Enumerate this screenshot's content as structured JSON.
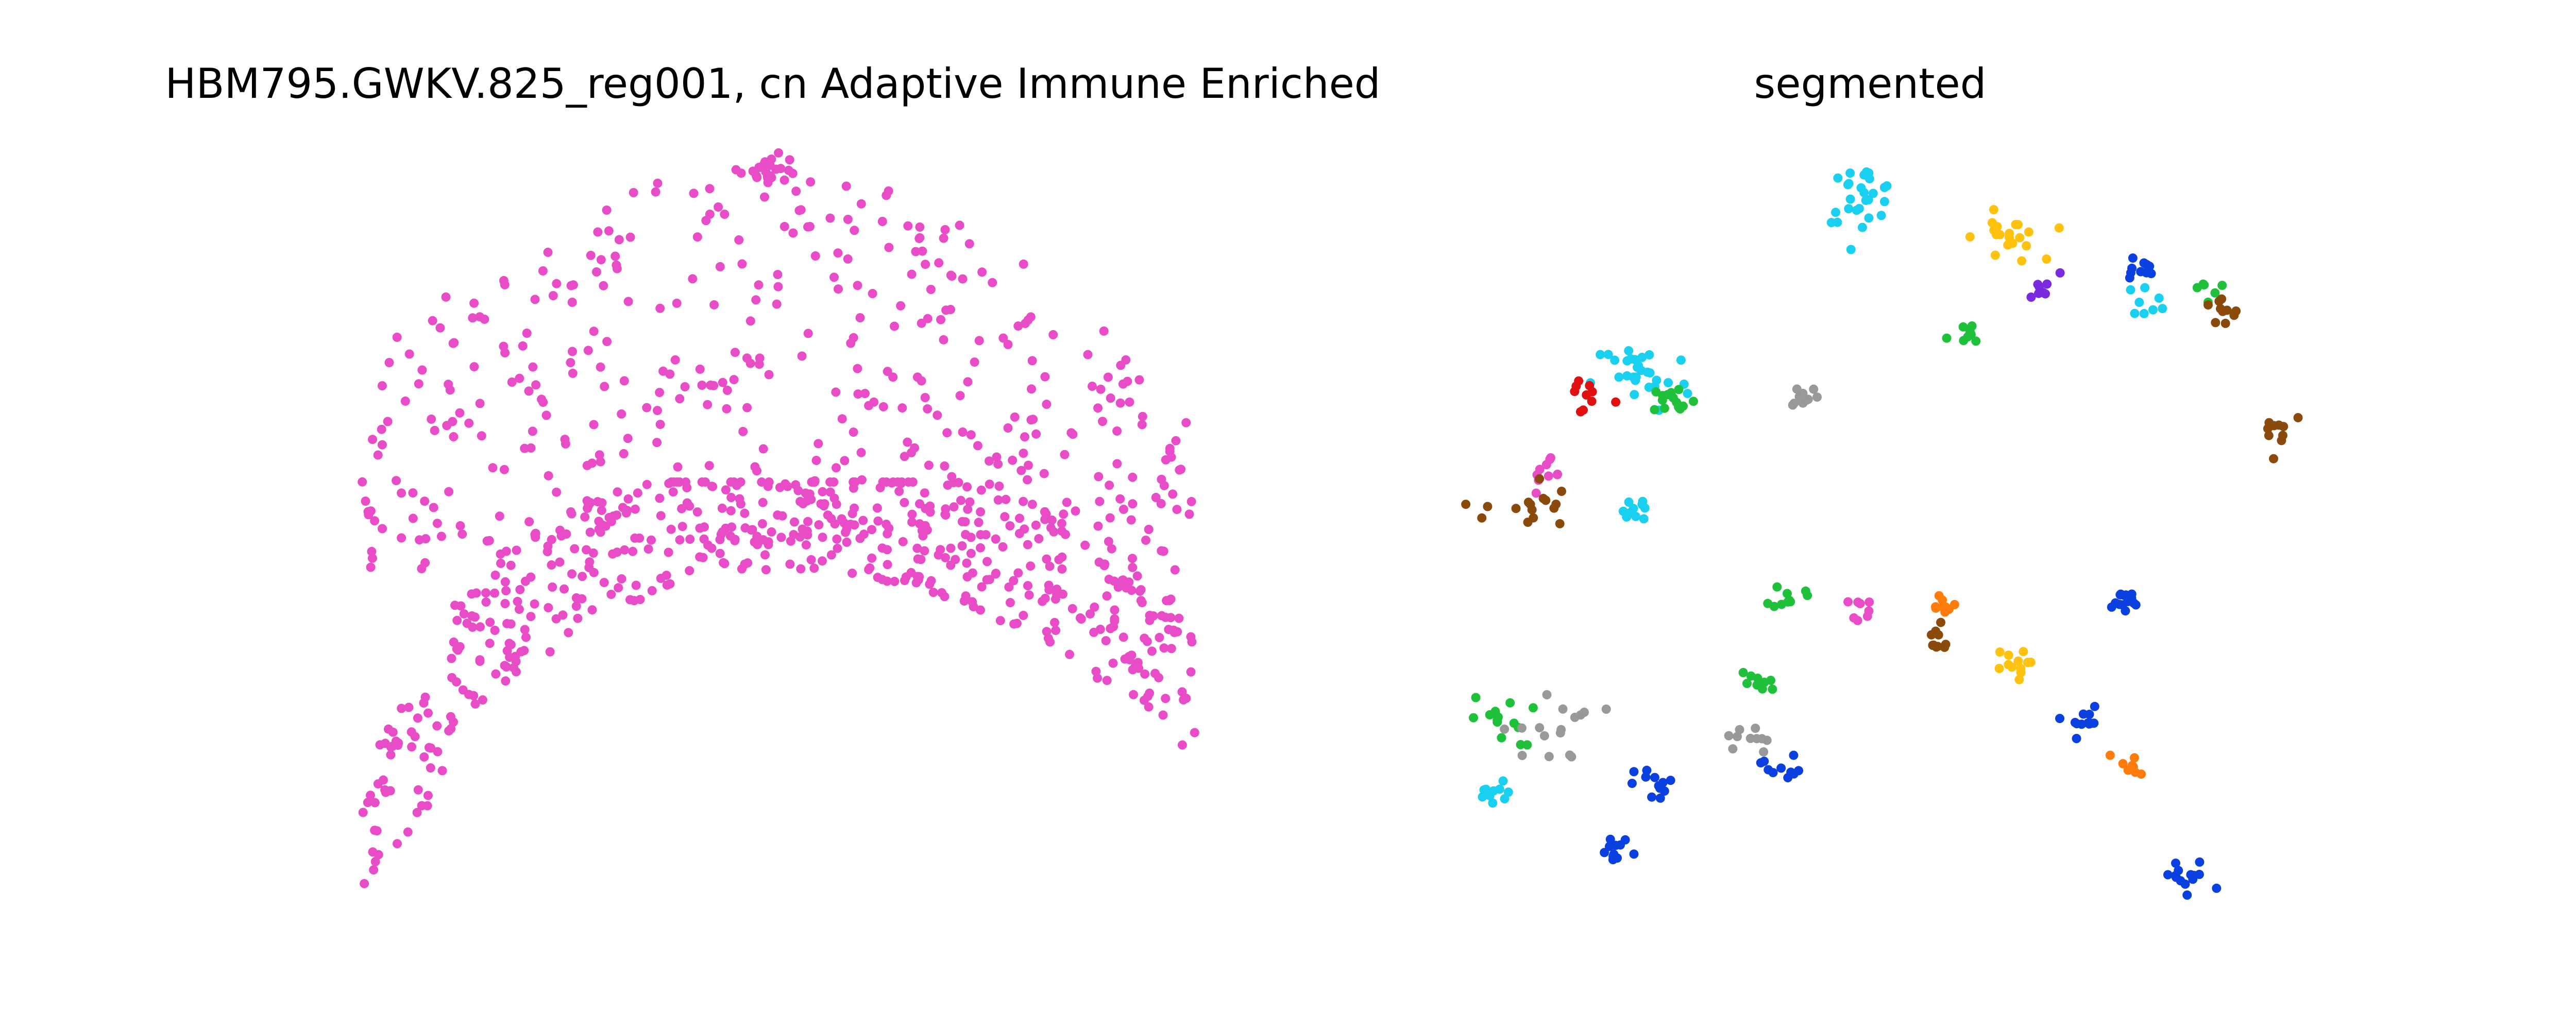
{
  "figure": {
    "left_title": "HBM795.GWKV.825_reg001, cn Adaptive Immune Enriched",
    "right_title": "segmented"
  },
  "chart_data": [
    {
      "type": "scatter",
      "title": "HBM795.GWKV.825_reg001, cn Adaptive Immune Enriched",
      "axes_visible": false,
      "grid": false,
      "xlim": [
        0,
        1
      ],
      "ylim": [
        0,
        1
      ],
      "series": [
        {
          "color": "#e84dc7",
          "regions": [
            {
              "kind": "arch-top",
              "x": [
                0.0,
                1.0
              ],
              "y": [
                0.42,
                1.0
              ],
              "count": 420
            },
            {
              "kind": "arch-band",
              "x": [
                0.0,
                1.0
              ],
              "y": [
                0.0,
                0.55
              ],
              "count": 520
            },
            {
              "kind": "cluster",
              "cx": 0.49,
              "cy": 0.995,
              "n": 25,
              "r": 0.018
            }
          ]
        }
      ]
    },
    {
      "type": "scatter",
      "title": "segmented",
      "axes_visible": false,
      "grid": false,
      "xlim": [
        0,
        1
      ],
      "ylim": [
        0,
        1
      ],
      "clusters": [
        {
          "color": "#1ad0f0",
          "cx": 0.47,
          "cy": 0.97,
          "n": 28,
          "r": 0.022
        },
        {
          "color": "#ffc20e",
          "cx": 0.65,
          "cy": 0.9,
          "n": 20,
          "r": 0.02
        },
        {
          "color": "#0a3fe0",
          "cx": 0.81,
          "cy": 0.85,
          "n": 10,
          "r": 0.012
        },
        {
          "color": "#1ad0f0",
          "cx": 0.82,
          "cy": 0.8,
          "n": 8,
          "r": 0.012
        },
        {
          "color": "#1fc03a",
          "cx": 0.89,
          "cy": 0.82,
          "n": 6,
          "r": 0.01
        },
        {
          "color": "#7a2be0",
          "cx": 0.69,
          "cy": 0.82,
          "n": 8,
          "r": 0.012
        },
        {
          "color": "#8a4a0c",
          "cx": 0.91,
          "cy": 0.78,
          "n": 10,
          "r": 0.014
        },
        {
          "color": "#1fc03a",
          "cx": 0.6,
          "cy": 0.74,
          "n": 8,
          "r": 0.012
        },
        {
          "color": "#1ad0f0",
          "cx": 0.2,
          "cy": 0.68,
          "n": 30,
          "r": 0.03
        },
        {
          "color": "#1fc03a",
          "cx": 0.24,
          "cy": 0.64,
          "n": 14,
          "r": 0.014
        },
        {
          "color": "#e01010",
          "cx": 0.13,
          "cy": 0.65,
          "n": 10,
          "r": 0.018
        },
        {
          "color": "#999999",
          "cx": 0.4,
          "cy": 0.65,
          "n": 10,
          "r": 0.01
        },
        {
          "color": "#8a4a0c",
          "cx": 0.98,
          "cy": 0.6,
          "n": 10,
          "r": 0.018
        },
        {
          "color": "#e84dc7",
          "cx": 0.09,
          "cy": 0.52,
          "n": 10,
          "r": 0.016
        },
        {
          "color": "#8a4a0c",
          "cx": 0.06,
          "cy": 0.47,
          "n": 16,
          "r": 0.026
        },
        {
          "color": "#1ad0f0",
          "cx": 0.19,
          "cy": 0.47,
          "n": 10,
          "r": 0.012
        },
        {
          "color": "#1fc03a",
          "cx": 0.38,
          "cy": 0.33,
          "n": 10,
          "r": 0.01
        },
        {
          "color": "#e84dc7",
          "cx": 0.48,
          "cy": 0.31,
          "n": 8,
          "r": 0.01
        },
        {
          "color": "#ff7c0a",
          "cx": 0.57,
          "cy": 0.32,
          "n": 10,
          "r": 0.008
        },
        {
          "color": "#0a3fe0",
          "cx": 0.79,
          "cy": 0.32,
          "n": 16,
          "r": 0.012
        },
        {
          "color": "#8a4a0c",
          "cx": 0.56,
          "cy": 0.26,
          "n": 10,
          "r": 0.012
        },
        {
          "color": "#ffc20e",
          "cx": 0.65,
          "cy": 0.22,
          "n": 12,
          "r": 0.012
        },
        {
          "color": "#1fc03a",
          "cx": 0.34,
          "cy": 0.19,
          "n": 10,
          "r": 0.012
        },
        {
          "color": "#1fc03a",
          "cx": 0.03,
          "cy": 0.13,
          "n": 14,
          "r": 0.02
        },
        {
          "color": "#999999",
          "cx": 0.09,
          "cy": 0.12,
          "n": 16,
          "r": 0.03
        },
        {
          "color": "#999999",
          "cx": 0.33,
          "cy": 0.1,
          "n": 10,
          "r": 0.014
        },
        {
          "color": "#0a3fe0",
          "cx": 0.37,
          "cy": 0.06,
          "n": 10,
          "r": 0.012
        },
        {
          "color": "#0a3fe0",
          "cx": 0.74,
          "cy": 0.13,
          "n": 12,
          "r": 0.012
        },
        {
          "color": "#ff7c0a",
          "cx": 0.8,
          "cy": 0.06,
          "n": 10,
          "r": 0.012
        },
        {
          "color": "#1ad0f0",
          "cx": 0.02,
          "cy": 0.01,
          "n": 10,
          "r": 0.012
        },
        {
          "color": "#0a3fe0",
          "cx": 0.22,
          "cy": 0.03,
          "n": 12,
          "r": 0.014
        },
        {
          "color": "#0a3fe0",
          "cx": 0.17,
          "cy": -0.08,
          "n": 12,
          "r": 0.012
        },
        {
          "color": "#0a3fe0",
          "cx": 0.87,
          "cy": -0.12,
          "n": 14,
          "r": 0.016
        }
      ]
    }
  ]
}
